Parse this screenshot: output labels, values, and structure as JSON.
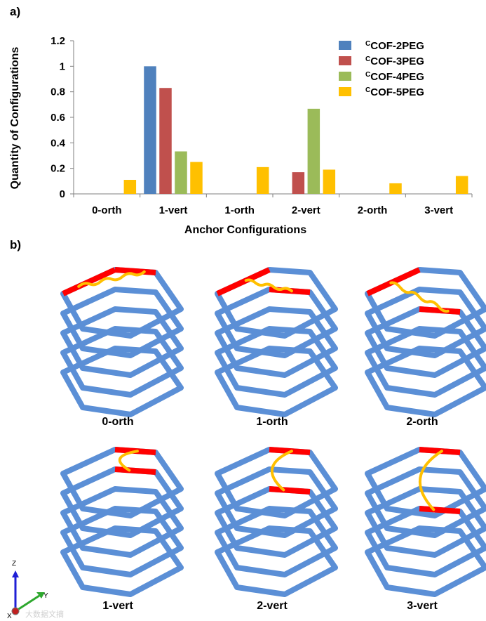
{
  "panels": {
    "a": "a)",
    "b": "b)"
  },
  "chart_data": {
    "type": "bar",
    "title": "",
    "xlabel": "Anchor Configurations",
    "ylabel": "Quantity of Configurations",
    "ylim": [
      0,
      1.2
    ],
    "yticks": [
      "0",
      "0.2",
      "0.4",
      "0.6",
      "0.8",
      "1",
      "1.2"
    ],
    "ytick_values": [
      0,
      0.2,
      0.4,
      0.6,
      0.8,
      1.0,
      1.2
    ],
    "categories": [
      "0-orth",
      "1-vert",
      "1-orth",
      "2-vert",
      "2-orth",
      "3-vert"
    ],
    "legend_position": "top-right",
    "series": [
      {
        "name": "COF-2PEG",
        "prefix": "C",
        "color": "#4f81bd",
        "values": [
          0,
          1.0,
          0,
          0,
          0,
          0
        ]
      },
      {
        "name": "COF-3PEG",
        "prefix": "C",
        "color": "#c0504d",
        "values": [
          0,
          0.83,
          0,
          0.17,
          0,
          0
        ]
      },
      {
        "name": "COF-4PEG",
        "prefix": "C",
        "color": "#9bbb59",
        "values": [
          0,
          0.333,
          0,
          0.667,
          0,
          0
        ]
      },
      {
        "name": "COF-5PEG",
        "prefix": "C",
        "color": "#ffc000",
        "values": [
          0.11,
          0.25,
          0.21,
          0.19,
          0.083,
          0.14
        ]
      }
    ]
  },
  "structures": [
    {
      "label": "0-orth",
      "chain": "wavy-top"
    },
    {
      "label": "1-orth",
      "chain": "wavy-mid"
    },
    {
      "label": "2-orth",
      "chain": "wavy-down"
    },
    {
      "label": "1-vert",
      "chain": "arc-1"
    },
    {
      "label": "2-vert",
      "chain": "arc-2"
    },
    {
      "label": "3-vert",
      "chain": "arc-3"
    }
  ],
  "colors": {
    "frame": "#5b8fd6",
    "anchor": "#ff0000",
    "chain": "#ffc000"
  },
  "axes_triad": {
    "z": "Z",
    "y": "Y",
    "x": "X"
  },
  "watermark": "大数据文摘"
}
